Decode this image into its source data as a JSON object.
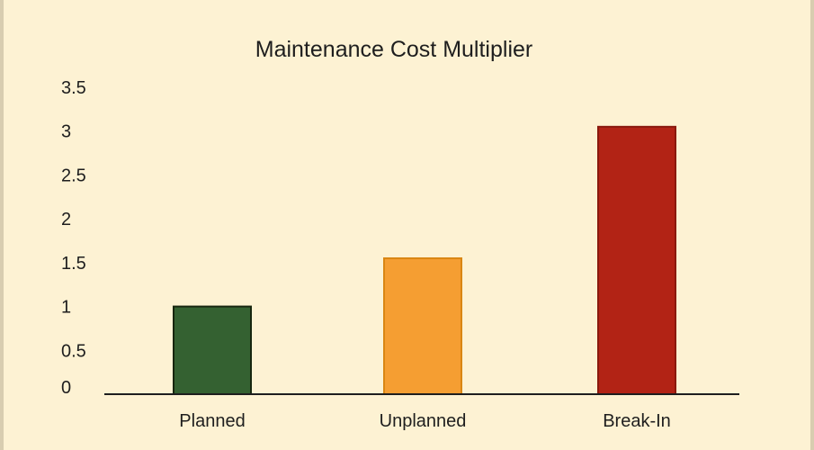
{
  "chart_data": {
    "type": "bar",
    "title": "Maintenance Cost Multiplier",
    "xlabel": "",
    "ylabel": "",
    "categories": [
      "Planned",
      "Unplanned",
      "Break-In"
    ],
    "values": [
      1,
      1.55,
      3.05
    ],
    "ylim": [
      0,
      3.5
    ],
    "yticks": [
      "0",
      "0.5",
      "1",
      "1.5",
      "2",
      "2.5",
      "3",
      "3.5"
    ],
    "grid": false,
    "legend": "none",
    "colors": [
      "#346131",
      "#f59e32",
      "#b22315"
    ],
    "edge_colors": [
      "#17260f",
      "#d98613",
      "#8a1a0e"
    ],
    "axis_color": "#1e1e1e"
  }
}
